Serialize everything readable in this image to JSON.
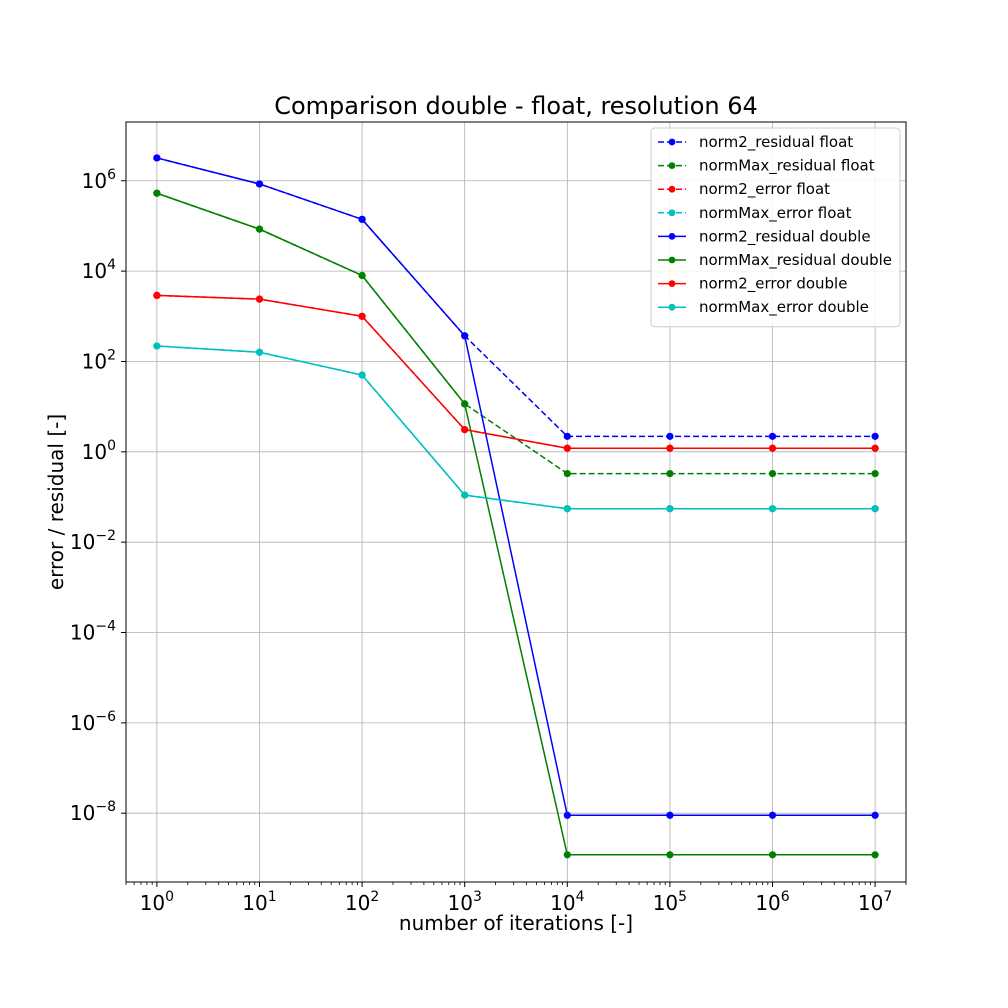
{
  "chart_data": {
    "type": "line",
    "title": "Comparison double - float, resolution 64",
    "xlabel": "number of iterations [-]",
    "ylabel": "error / residual [-]",
    "xscale": "log",
    "yscale": "log",
    "xlim": [
      0.5,
      20000000
    ],
    "ylim": [
      3e-10,
      20000000
    ],
    "grid": true,
    "legend_position": "top-right",
    "x": [
      1,
      10,
      100,
      1000,
      10000,
      100000,
      1000000,
      10000000
    ],
    "x_ticks": [
      {
        "base": "10",
        "exp": "0"
      },
      {
        "base": "10",
        "exp": "1"
      },
      {
        "base": "10",
        "exp": "2"
      },
      {
        "base": "10",
        "exp": "3"
      },
      {
        "base": "10",
        "exp": "4"
      },
      {
        "base": "10",
        "exp": "5"
      },
      {
        "base": "10",
        "exp": "6"
      },
      {
        "base": "10",
        "exp": "7"
      }
    ],
    "y_ticks": [
      {
        "base": "10",
        "exp": "−8"
      },
      {
        "base": "10",
        "exp": "−6"
      },
      {
        "base": "10",
        "exp": "−4"
      },
      {
        "base": "10",
        "exp": "−2"
      },
      {
        "base": "10",
        "exp": "0"
      },
      {
        "base": "10",
        "exp": "2"
      },
      {
        "base": "10",
        "exp": "4"
      },
      {
        "base": "10",
        "exp": "6"
      }
    ],
    "series": [
      {
        "name": "norm2_residual float",
        "color": "#0000ff",
        "dashed": true,
        "values": [
          3200000,
          850000,
          140000,
          370,
          2.2,
          2.2,
          2.2,
          2.2
        ]
      },
      {
        "name": "normMax_residual float",
        "color": "#008000",
        "dashed": true,
        "values": [
          530000,
          85000,
          8000,
          11.5,
          0.33,
          0.33,
          0.33,
          0.33
        ]
      },
      {
        "name": "norm2_error float",
        "color": "#ff0000",
        "dashed": true,
        "values": [
          2900,
          2400,
          1000,
          3.1,
          1.2,
          1.2,
          1.2,
          1.2
        ]
      },
      {
        "name": "normMax_error float",
        "color": "#00bfbf",
        "dashed": true,
        "values": [
          220,
          160,
          50,
          0.11,
          0.055,
          0.055,
          0.055,
          0.055
        ]
      },
      {
        "name": "norm2_residual double",
        "color": "#0000ff",
        "dashed": false,
        "values": [
          3200000,
          850000,
          140000,
          370,
          9e-09,
          9e-09,
          9e-09,
          9e-09
        ]
      },
      {
        "name": "normMax_residual double",
        "color": "#008000",
        "dashed": false,
        "values": [
          530000,
          85000,
          8000,
          11.5,
          1.2e-09,
          1.2e-09,
          1.2e-09,
          1.2e-09
        ]
      },
      {
        "name": "norm2_error double",
        "color": "#ff0000",
        "dashed": false,
        "values": [
          2900,
          2400,
          1000,
          3.1,
          1.2,
          1.2,
          1.2,
          1.2
        ]
      },
      {
        "name": "normMax_error double",
        "color": "#00bfbf",
        "dashed": false,
        "values": [
          220,
          160,
          50,
          0.11,
          0.055,
          0.055,
          0.055,
          0.055
        ]
      }
    ]
  }
}
